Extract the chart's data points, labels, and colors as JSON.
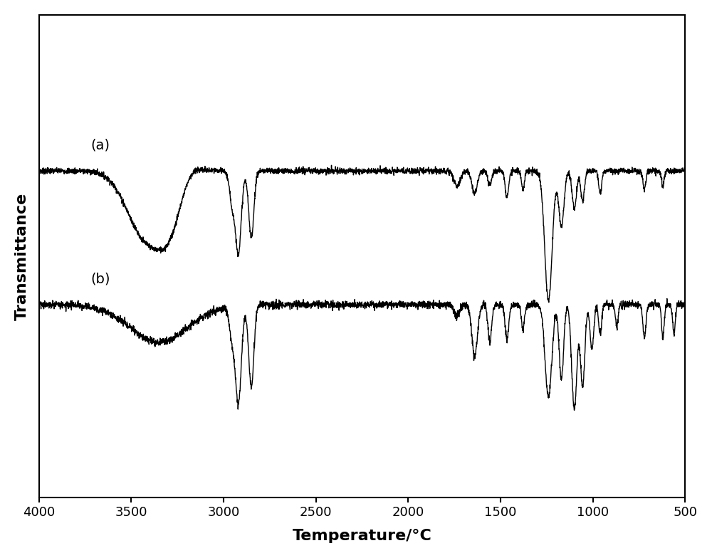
{
  "title": "",
  "xlabel": "Temperature/°C",
  "ylabel": "Transmittance",
  "xlim": [
    4000,
    500
  ],
  "xticks": [
    4000,
    3500,
    3000,
    2500,
    2000,
    1500,
    1000,
    500
  ],
  "background_color": "#ffffff",
  "line_color": "#000000",
  "label_a": "(a)",
  "label_b": "(b)",
  "xlabel_fontsize": 16,
  "ylabel_fontsize": 16,
  "tick_fontsize": 13,
  "ylim": [
    0.0,
    1.3
  ],
  "a_baseline": 0.88,
  "b_baseline": 0.52
}
